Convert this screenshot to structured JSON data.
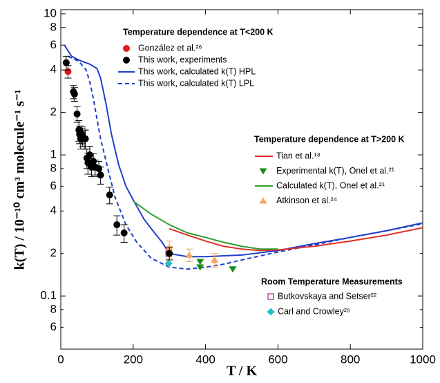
{
  "chart_data": {
    "type": "line",
    "xlabel": "T / K",
    "ylabel": "k(T) / 10⁻¹⁰ cm³ molecule⁻¹ s⁻¹",
    "xlim": [
      0,
      1000
    ],
    "xticks": [
      0,
      200,
      400,
      600,
      800,
      1000
    ],
    "ylim": [
      0.042,
      10.7
    ],
    "log_y": true,
    "yticks": [
      {
        "value": 0.06,
        "label": "6"
      },
      {
        "value": 0.08,
        "label": "8"
      },
      0.1,
      {
        "value": 0.2,
        "label": "2"
      },
      {
        "value": 0.4,
        "label": "4"
      },
      {
        "value": 0.6,
        "label": "6"
      },
      {
        "value": 0.8,
        "label": "8"
      },
      1,
      2,
      4,
      6,
      8,
      10
    ],
    "annotations": [
      "Temperature dependence at T<200 K",
      "Temperature dependence at T>200 K",
      "Room Temperature Measurements"
    ],
    "series": [
      {
        "name": "González et al.²⁶",
        "color": "#e31a1c",
        "style": "marker",
        "marker": "circle",
        "x": [
          20
        ],
        "values": [
          3.9
        ],
        "errors": [
          0.4
        ]
      },
      {
        "name": "This work, experiments",
        "color": "#000000",
        "style": "marker",
        "marker": "circle",
        "x": [
          15,
          35,
          38,
          45,
          50,
          52,
          55,
          58,
          60,
          65,
          68,
          72,
          75,
          80,
          85,
          90,
          95,
          105,
          110,
          135,
          155,
          175,
          300
        ],
        "values": [
          4.5,
          2.8,
          2.7,
          1.95,
          1.5,
          1.4,
          1.3,
          1.4,
          1.35,
          1.3,
          1.3,
          0.95,
          0.88,
          1.0,
          0.82,
          0.9,
          0.82,
          0.8,
          0.72,
          0.52,
          0.32,
          0.28,
          0.2
        ],
        "errors": [
          0.5,
          0.3,
          0.3,
          0.25,
          0.25,
          0.2,
          0.2,
          0.2,
          0.2,
          0.2,
          0.2,
          0.15,
          0.15,
          0.15,
          0.12,
          0.12,
          0.1,
          0.1,
          0.1,
          0.07,
          0.05,
          0.04,
          0.02
        ]
      },
      {
        "name": "This work, calculated k(T) HPL",
        "color": "#1f3fcc",
        "style": "solid",
        "x": [
          10,
          30,
          50,
          80,
          100,
          110,
          125,
          140,
          160,
          180,
          200,
          230,
          250,
          280,
          300,
          350,
          400,
          500,
          600,
          700,
          800,
          900,
          1000
        ],
        "values": [
          6.0,
          5.0,
          4.7,
          4.4,
          4.1,
          3.5,
          2.3,
          1.4,
          0.85,
          0.6,
          0.48,
          0.35,
          0.3,
          0.24,
          0.2,
          0.19,
          0.19,
          0.195,
          0.21,
          0.235,
          0.26,
          0.29,
          0.33
        ]
      },
      {
        "name": "This work, calculated k(T) LPL",
        "color": "#1f3fcc",
        "style": "dashed",
        "x": [
          20,
          50,
          70,
          80,
          90,
          100,
          110,
          130,
          150,
          180,
          210,
          250,
          300,
          350,
          400,
          450,
          500,
          600,
          700,
          800,
          900,
          1000
        ],
        "values": [
          5.0,
          4.6,
          4.0,
          3.3,
          2.5,
          1.8,
          1.3,
          0.8,
          0.5,
          0.32,
          0.24,
          0.185,
          0.16,
          0.155,
          0.16,
          0.168,
          0.18,
          0.205,
          0.23,
          0.26,
          0.29,
          0.325
        ]
      },
      {
        "name": "Tian et al.¹⁸",
        "color": "#e0302a",
        "style": "solid",
        "x": [
          300,
          350,
          400,
          450,
          500,
          550,
          600,
          700,
          800,
          900,
          1000
        ],
        "values": [
          0.3,
          0.27,
          0.245,
          0.225,
          0.215,
          0.21,
          0.212,
          0.225,
          0.245,
          0.27,
          0.305
        ]
      },
      {
        "name": "Experimental k(T), Onel et al.²¹",
        "color": "#1a8c1a",
        "style": "marker",
        "marker": "triangle-down",
        "x": [
          385,
          385,
          475
        ],
        "values": [
          0.175,
          0.16,
          0.155
        ]
      },
      {
        "name": "Calculated k(T), Onel et al.²¹",
        "color": "#2ca02c",
        "style": "solid",
        "x": [
          200,
          250,
          300,
          350,
          400,
          450,
          500,
          550,
          600
        ],
        "values": [
          0.47,
          0.38,
          0.32,
          0.28,
          0.26,
          0.24,
          0.225,
          0.215,
          0.215
        ]
      },
      {
        "name": "Atkinson et al.²⁴",
        "color": "#f4a460",
        "style": "marker",
        "marker": "triangle-up",
        "x": [
          300,
          300,
          355,
          425
        ],
        "values": [
          0.22,
          0.205,
          0.195,
          0.18
        ],
        "errors": [
          0.025,
          0.02,
          0.02,
          0.02
        ]
      },
      {
        "name": "Butkovskaya and Setser²²",
        "color": "#b03090",
        "style": "marker",
        "marker": "square-open",
        "x": [
          298
        ],
        "values": [
          0.2
        ]
      },
      {
        "name": "Carl and Crowley²⁵",
        "color": "#20c0c8",
        "style": "marker",
        "marker": "diamond",
        "x": [
          298
        ],
        "values": [
          0.17
        ]
      }
    ]
  }
}
